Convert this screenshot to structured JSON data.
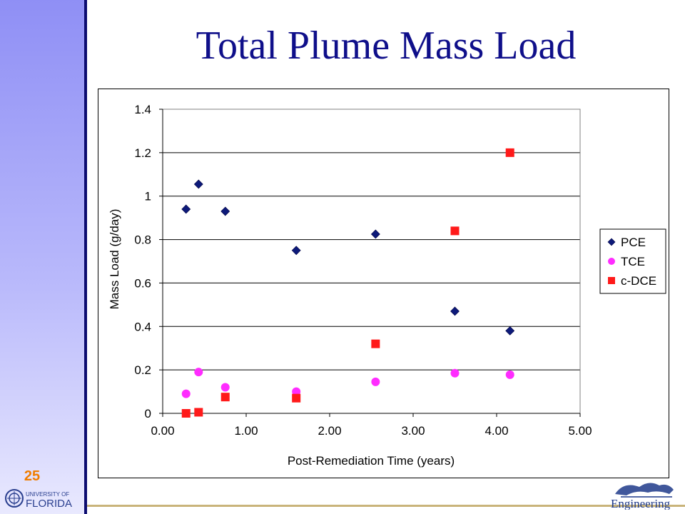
{
  "slide": {
    "title": "Total Plume Mass Load",
    "number": "25",
    "logo_left_text": "UNIVERSITY OF FLORIDA",
    "logo_right_text": "Engineering"
  },
  "colors": {
    "title": "#0f0f8a",
    "sidebar": "#b9b9fb",
    "number": "#f07d00"
  },
  "chart_data": {
    "type": "scatter",
    "title": "",
    "xlabel": "Post-Remediation Time (years)",
    "ylabel": "Mass Load  (g/day)",
    "xlim": [
      0,
      5
    ],
    "ylim": [
      0,
      1.4
    ],
    "x_ticks": [
      "0.00",
      "1.00",
      "2.00",
      "3.00",
      "4.00",
      "5.00"
    ],
    "y_ticks": [
      "0",
      "0.2",
      "0.4",
      "0.6",
      "0.8",
      "1",
      "1.2",
      "1.4"
    ],
    "grid": "horizontal",
    "legend_position": "right",
    "series": [
      {
        "name": "PCE",
        "marker": "diamond",
        "color": "#0d1a7a",
        "points": [
          [
            0.28,
            0.94
          ],
          [
            0.43,
            1.055
          ],
          [
            0.75,
            0.93
          ],
          [
            1.6,
            0.75
          ],
          [
            2.55,
            0.825
          ],
          [
            3.5,
            0.47
          ],
          [
            4.16,
            0.38
          ]
        ]
      },
      {
        "name": "TCE",
        "marker": "circle",
        "color": "#ff2cff",
        "points": [
          [
            0.28,
            0.09
          ],
          [
            0.43,
            0.19
          ],
          [
            0.75,
            0.12
          ],
          [
            1.6,
            0.1
          ],
          [
            2.55,
            0.145
          ],
          [
            3.5,
            0.185
          ],
          [
            4.16,
            0.178
          ]
        ]
      },
      {
        "name": "c-DCE",
        "marker": "square",
        "color": "#ff1a1a",
        "points": [
          [
            0.28,
            0.0
          ],
          [
            0.43,
            0.005
          ],
          [
            0.75,
            0.075
          ],
          [
            1.6,
            0.07
          ],
          [
            2.55,
            0.32
          ],
          [
            3.5,
            0.84
          ],
          [
            4.16,
            1.2
          ]
        ]
      }
    ]
  }
}
